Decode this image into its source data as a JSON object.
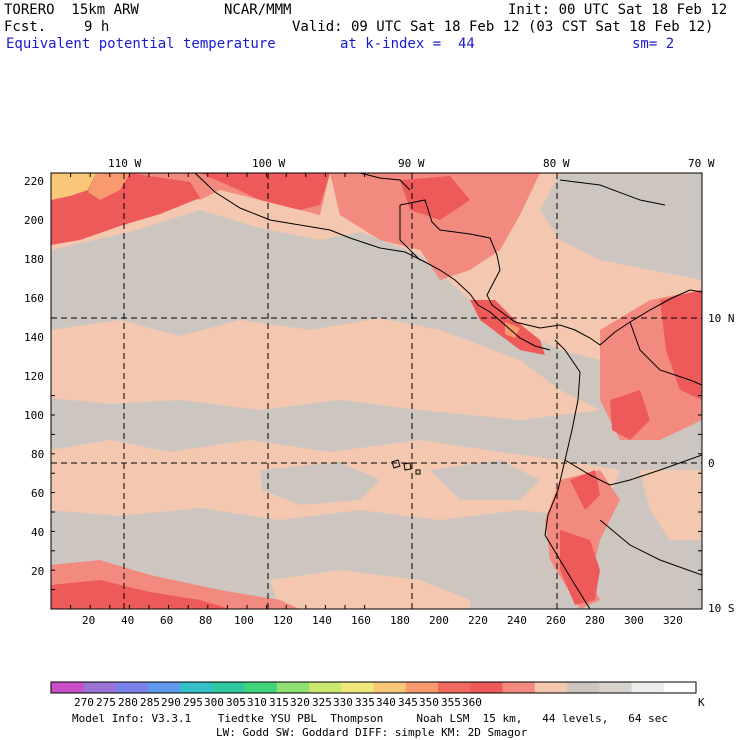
{
  "header": {
    "model_name": "TORERO  15km ARW",
    "fcst_label": "Fcst.",
    "fcst_value": "9 h",
    "center": "NCAR/MMM",
    "init": "Init: 00 UTC Sat 18 Feb 12",
    "valid": "Valid: 09 UTC Sat 18 Feb 12 (03 CST Sat 18 Feb 12)",
    "field": "Equivalent potential temperature",
    "level": "at k-index =  44",
    "smoothing": "sm= 2"
  },
  "map_axes": {
    "top_longitudes": [
      "110 W",
      "100 W",
      "90 W",
      "80 W",
      "70 W"
    ],
    "right_latitudes": [
      "10 N",
      "0",
      "10 S"
    ],
    "left_grid_ticks": [
      "220",
      "200",
      "180",
      "160",
      "140",
      "120",
      "100",
      "80",
      "60",
      "40",
      "20"
    ],
    "bottom_grid_ticks": [
      "20",
      "40",
      "60",
      "80",
      "100",
      "120",
      "140",
      "160",
      "180",
      "200",
      "220",
      "240",
      "260",
      "280",
      "300",
      "320"
    ]
  },
  "colorbar": {
    "unit": "K",
    "labels": [
      "270",
      "275",
      "280",
      "285",
      "290",
      "295",
      "300",
      "305",
      "310",
      "315",
      "320",
      "325",
      "330",
      "335",
      "340",
      "345",
      "350",
      "355",
      "360"
    ],
    "colors": [
      "#c84fc8",
      "#9b72d6",
      "#7a82ea",
      "#5f9bea",
      "#35c0c8",
      "#30c8a0",
      "#40d47c",
      "#8ee070",
      "#c8e870",
      "#f0e87a",
      "#f8c878",
      "#f89a6e",
      "#f26a5e",
      "#ee5a5a",
      "#f28a80",
      "#f4c8b0",
      "#cdc6c0",
      "#d7d2cc",
      "#ececec",
      "#ffffff"
    ]
  },
  "model_info": {
    "line1": "Model Info: V3.3.1    Tiedtke YSU PBL  Thompson     Noah LSM  15 km,   44 levels,   64 sec",
    "line2": "LW: Godd SW: Goddard DIFF: simple KM: 2D Smagor"
  }
}
